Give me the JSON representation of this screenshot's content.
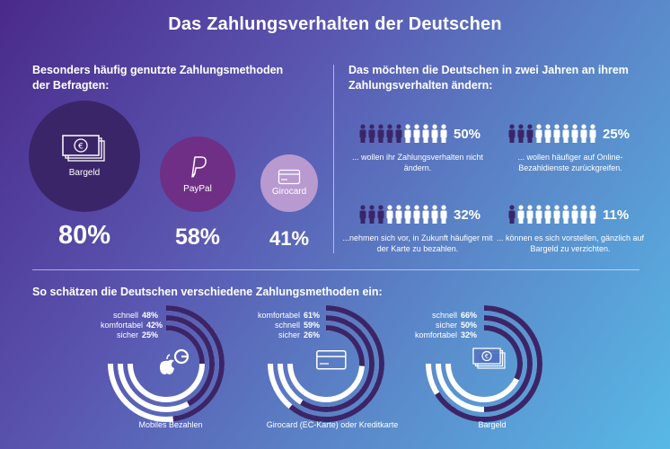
{
  "title": "Das Zahlungsverhalten der Deutschen",
  "left_heading": "Besonders häufig genutzte Zahlungsmethoden der Befragten:",
  "right_heading": "Das möchten die Deutschen in zwei Jahren an ihrem Zahlungsverhalten ändern:",
  "bottom_heading": "So schätzen die Deutschen verschiedene Zahlungsmethoden ein:",
  "colors": {
    "dark_purple": "#3b2569",
    "magenta_purple": "#6f2f86",
    "light_purple": "#b89ad0",
    "person_dark": "#3b2569",
    "ring_dark": "#3b2569"
  },
  "chart_data": [
    {
      "type": "bubble",
      "categories": [
        "Bargeld",
        "PayPal",
        "Girocard"
      ],
      "values": [
        80,
        58,
        41
      ],
      "value_labels": [
        "80%",
        "58%",
        "41%"
      ],
      "icons": [
        "banknote-icon",
        "paypal-icon",
        "card-icon"
      ]
    },
    {
      "type": "pictogram",
      "total_icons": 10,
      "items": [
        {
          "value": 50,
          "label": "50%",
          "text": "... wollen ihr Zahlungsverhalten nicht ändern."
        },
        {
          "value": 25,
          "label": "25%",
          "text": "... wollen häufiger auf Online-Bezahldienste zurückgreifen."
        },
        {
          "value": 32,
          "label": "32%",
          "text": "...nehmen sich vor, in Zukunft häufiger mit der Karte zu bezahlen."
        },
        {
          "value": 11,
          "label": "11%",
          "text": "... können es sich vorstellen, gänzlich auf Bargeld zu verzichten."
        }
      ]
    },
    {
      "type": "radial_bar",
      "groups": [
        {
          "name": "Mobiles Bezahlen",
          "icon": "apple-google-pay-icon",
          "series": [
            {
              "name": "schnell",
              "value": 48,
              "label": "48%"
            },
            {
              "name": "komfortabel",
              "value": 42,
              "label": "42%"
            },
            {
              "name": "sicher",
              "value": 25,
              "label": "25%"
            }
          ]
        },
        {
          "name": "Girocard (EC-Karte) oder Kreditkarte",
          "icon": "card-icon",
          "series": [
            {
              "name": "komfortabel",
              "value": 61,
              "label": "61%"
            },
            {
              "name": "schnell",
              "value": 59,
              "label": "59%"
            },
            {
              "name": "sicher",
              "value": 26,
              "label": "26%"
            }
          ]
        },
        {
          "name": "Bargeld",
          "icon": "banknote-icon",
          "series": [
            {
              "name": "schnell",
              "value": 66,
              "label": "66%"
            },
            {
              "name": "sicher",
              "value": 50,
              "label": "50%"
            },
            {
              "name": "komfortabel",
              "value": 32,
              "label": "32%"
            }
          ]
        }
      ]
    }
  ]
}
